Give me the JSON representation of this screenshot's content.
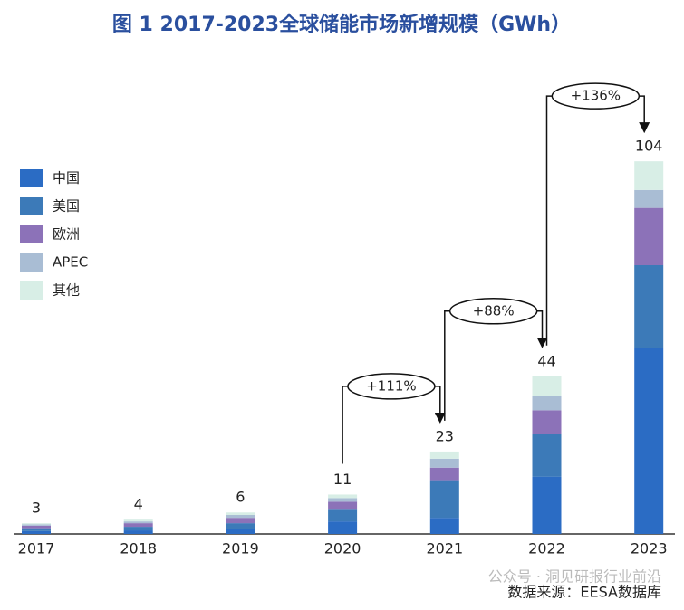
{
  "chart_data": {
    "type": "stacked-bar",
    "title": "图 1  2017-2023全球储能市场新增规模（GWh）",
    "categories": [
      "2017",
      "2018",
      "2019",
      "2020",
      "2021",
      "2022",
      "2023"
    ],
    "series": [
      {
        "name": "中国",
        "color": "#2b6cc4",
        "values": [
          0.8,
          1,
          1.5,
          3.5,
          4.5,
          16,
          52
        ]
      },
      {
        "name": "美国",
        "color": "#3c7ab8",
        "values": [
          0.8,
          1,
          1.5,
          3.5,
          10.5,
          12,
          23
        ]
      },
      {
        "name": "欧洲",
        "color": "#8c72b8",
        "values": [
          0.7,
          1,
          1.5,
          2,
          3.5,
          6.5,
          16
        ]
      },
      {
        "name": "APEC",
        "color": "#a9bdd4",
        "values": [
          0.4,
          0.5,
          0.8,
          1,
          2.5,
          4,
          5
        ]
      },
      {
        "name": "其他",
        "color": "#d8eee6",
        "values": [
          0.3,
          0.5,
          0.7,
          1,
          2,
          5.5,
          8
        ]
      }
    ],
    "totals": [
      3,
      4,
      6,
      11,
      23,
      44,
      104
    ],
    "annotations": [
      "+111%",
      "+88%",
      "+136%"
    ],
    "source": "数据来源：EESA数据库",
    "watermark": "公众号 · 洞见研报行业前沿"
  }
}
